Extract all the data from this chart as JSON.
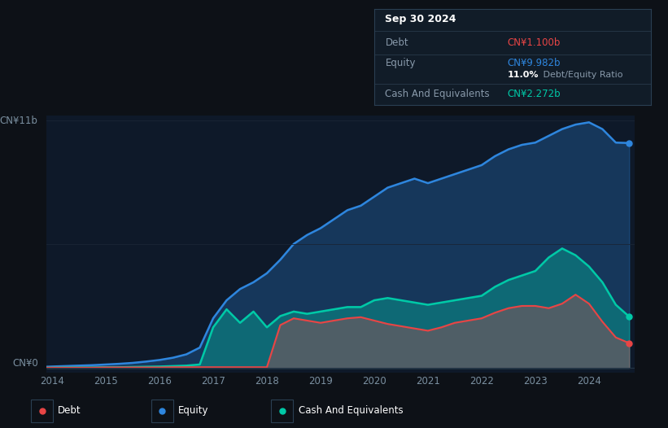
{
  "bg_color": "#0d1117",
  "plot_bg_color": "#0e1929",
  "grid_color": "#1e2d3d",
  "equity_color": "#2e86de",
  "debt_color": "#e84545",
  "cash_color": "#00c9a7",
  "ylabel_top": "CN¥11b",
  "ylabel_bottom": "CN¥0",
  "x_ticks": [
    "2014",
    "2015",
    "2016",
    "2017",
    "2018",
    "2019",
    "2020",
    "2021",
    "2022",
    "2023",
    "2024"
  ],
  "legend_items": [
    "Debt",
    "Equity",
    "Cash And Equivalents"
  ],
  "tooltip_date": "Sep 30 2024",
  "tooltip_debt": "CN¥1.100b",
  "tooltip_equity": "CN¥9.982b",
  "tooltip_ratio": "11.0% Debt/Equity Ratio",
  "tooltip_cash": "CN¥2.272b",
  "time_points": [
    2013.9,
    2014.0,
    2014.25,
    2014.5,
    2014.75,
    2015.0,
    2015.25,
    2015.5,
    2015.75,
    2016.0,
    2016.25,
    2016.5,
    2016.75,
    2017.0,
    2017.25,
    2017.5,
    2017.75,
    2018.0,
    2018.25,
    2018.5,
    2018.75,
    2019.0,
    2019.25,
    2019.5,
    2019.75,
    2020.0,
    2020.25,
    2020.5,
    2020.75,
    2021.0,
    2021.25,
    2021.5,
    2021.75,
    2022.0,
    2022.25,
    2022.5,
    2022.75,
    2023.0,
    2023.25,
    2023.5,
    2023.75,
    2024.0,
    2024.25,
    2024.5,
    2024.75
  ],
  "equity": [
    0.05,
    0.06,
    0.08,
    0.1,
    0.12,
    0.15,
    0.18,
    0.22,
    0.28,
    0.35,
    0.45,
    0.6,
    0.9,
    2.2,
    3.0,
    3.5,
    3.8,
    4.2,
    4.8,
    5.5,
    5.9,
    6.2,
    6.6,
    7.0,
    7.2,
    7.6,
    8.0,
    8.2,
    8.4,
    8.2,
    8.4,
    8.6,
    8.8,
    9.0,
    9.4,
    9.7,
    9.9,
    10.0,
    10.3,
    10.6,
    10.8,
    10.9,
    10.6,
    10.0,
    9.982
  ],
  "cash": [
    0.01,
    0.01,
    0.02,
    0.02,
    0.02,
    0.03,
    0.03,
    0.04,
    0.05,
    0.06,
    0.08,
    0.1,
    0.15,
    1.8,
    2.6,
    2.0,
    2.5,
    1.8,
    2.3,
    2.5,
    2.4,
    2.5,
    2.6,
    2.7,
    2.7,
    3.0,
    3.1,
    3.0,
    2.9,
    2.8,
    2.9,
    3.0,
    3.1,
    3.2,
    3.6,
    3.9,
    4.1,
    4.3,
    4.9,
    5.3,
    5.0,
    4.5,
    3.8,
    2.8,
    2.272
  ],
  "debt": [
    0.01,
    0.01,
    0.01,
    0.01,
    0.01,
    0.02,
    0.02,
    0.02,
    0.02,
    0.02,
    0.03,
    0.03,
    0.03,
    0.03,
    0.03,
    0.03,
    0.03,
    0.03,
    1.9,
    2.2,
    2.1,
    2.0,
    2.1,
    2.2,
    2.25,
    2.1,
    1.95,
    1.85,
    1.75,
    1.65,
    1.8,
    2.0,
    2.1,
    2.2,
    2.45,
    2.65,
    2.75,
    2.75,
    2.65,
    2.85,
    3.25,
    2.85,
    2.05,
    1.35,
    1.1
  ]
}
